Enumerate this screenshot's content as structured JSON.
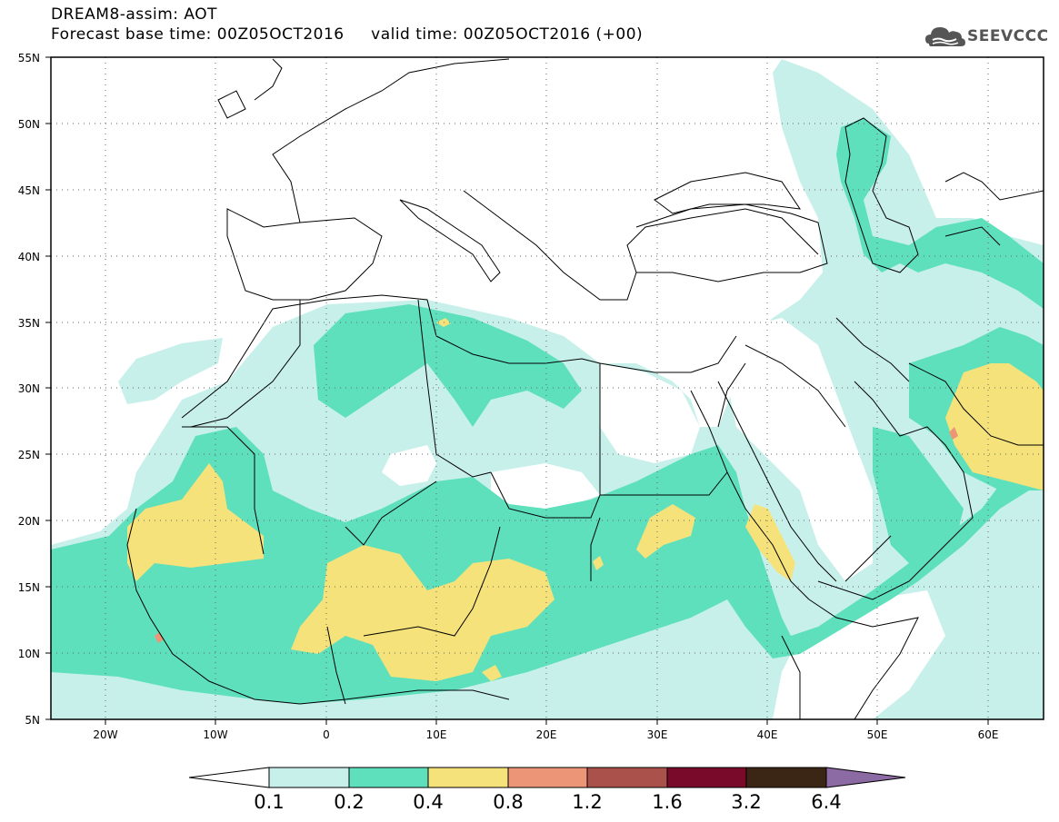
{
  "title": {
    "line1": "DREAM8-assim: AOT",
    "line2": "Forecast base time: 00Z05OCT2016     valid time: 00Z05OCT2016 (+00)"
  },
  "logo": {
    "text": "SEEVCCC",
    "icon": "cloud-icon"
  },
  "map": {
    "lon_range": [
      -25,
      65
    ],
    "lat_range": [
      5,
      55
    ],
    "lat_ticks": [
      "5N",
      "10N",
      "15N",
      "20N",
      "25N",
      "30N",
      "35N",
      "40N",
      "45N",
      "50N",
      "55N"
    ],
    "lon_ticks": [
      "20W",
      "10W",
      "0",
      "10E",
      "20E",
      "30E",
      "40E",
      "50E",
      "60E"
    ],
    "grid": "dotted"
  },
  "legend": {
    "labels": [
      "0.1",
      "0.2",
      "0.4",
      "0.8",
      "1.2",
      "1.6",
      "3.2",
      "6.4"
    ],
    "colors": [
      "#ffffff",
      "#c8f0eb",
      "#5ee0bd",
      "#f5e27a",
      "#ec9577",
      "#a9514a",
      "#7a0a2a",
      "#3b2514",
      "#8c6aa4"
    ]
  }
}
